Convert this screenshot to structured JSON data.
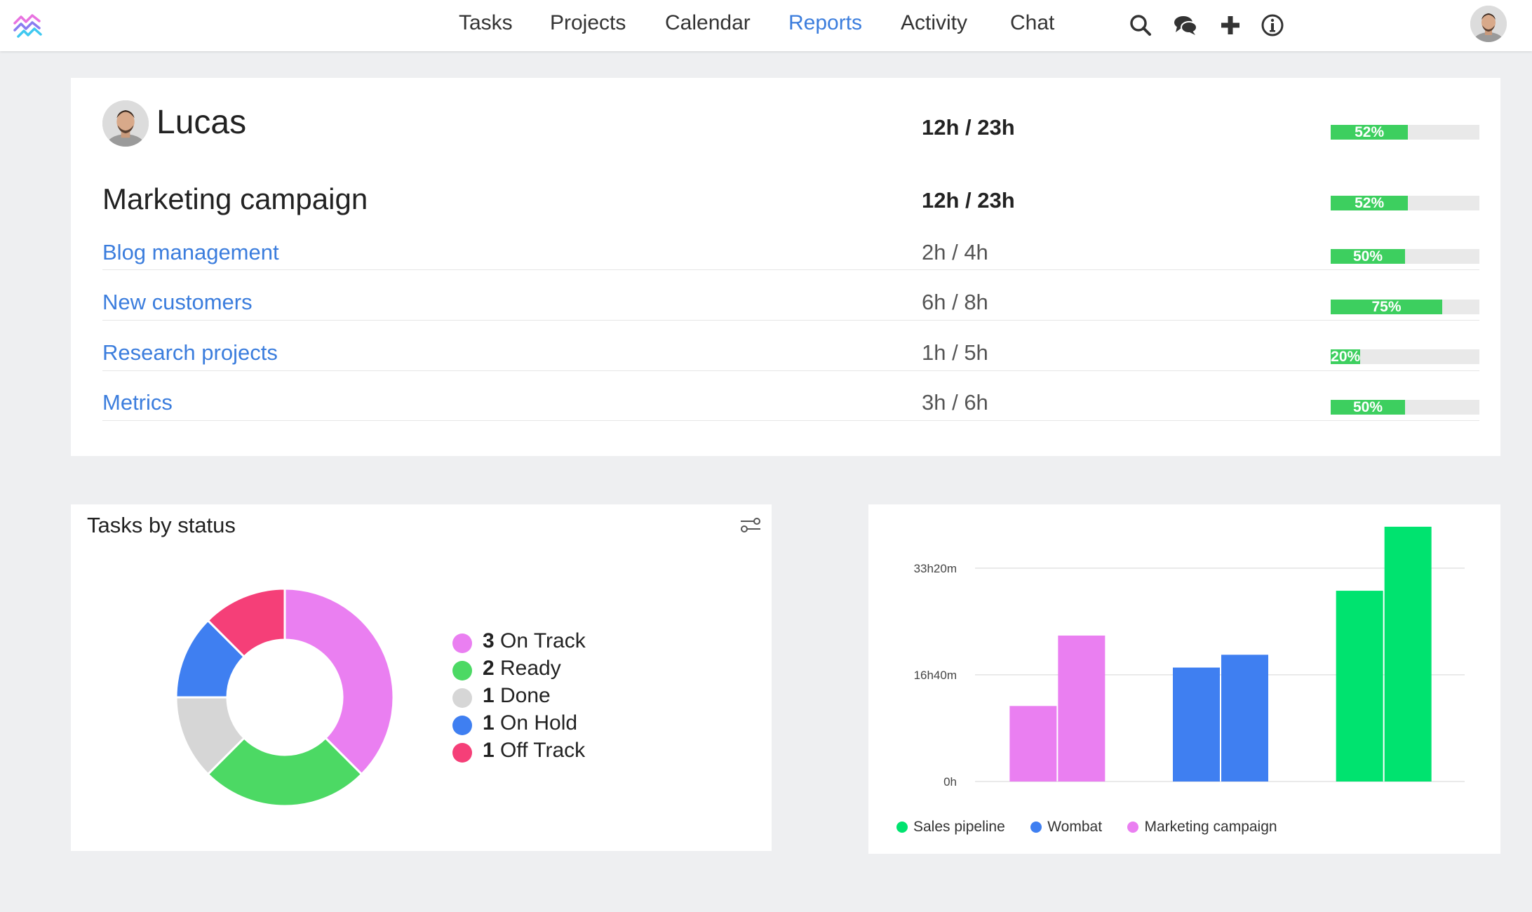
{
  "nav": {
    "items": [
      {
        "label": "Tasks",
        "active": false
      },
      {
        "label": "Projects",
        "active": false
      },
      {
        "label": "Calendar",
        "active": false
      },
      {
        "label": "Reports",
        "active": true
      },
      {
        "label": "Activity",
        "active": false
      },
      {
        "label": "Chat",
        "active": false
      }
    ],
    "icons": [
      "search-icon",
      "chat-bubbles-icon",
      "plus-icon",
      "info-icon"
    ],
    "active_color": "#3b7ddd"
  },
  "report": {
    "user": {
      "name": "Lucas",
      "hours": "12h / 23h",
      "percent": 52
    },
    "project": {
      "name": "Marketing campaign",
      "hours": "12h / 23h",
      "percent": 52
    },
    "rows": [
      {
        "label": "Blog management",
        "hours": "2h / 4h",
        "percent": 50
      },
      {
        "label": "New customers",
        "hours": "6h / 8h",
        "percent": 75
      },
      {
        "label": "Research projects",
        "hours": "1h / 5h",
        "percent": 20
      },
      {
        "label": "Metrics",
        "hours": "3h / 6h",
        "percent": 50
      }
    ],
    "bar_color": "#3dcf5f"
  },
  "status": {
    "title": "Tasks by status",
    "legend": [
      {
        "count": "3",
        "label": "On Track",
        "color": "#ea7ff1"
      },
      {
        "count": "2",
        "label": "Ready",
        "color": "#4cd964"
      },
      {
        "count": "1",
        "label": "Done",
        "color": "#d6d6d6"
      },
      {
        "count": "1",
        "label": "On Hold",
        "color": "#3f7ff1"
      },
      {
        "count": "1",
        "label": "Off Track",
        "color": "#f53f78"
      }
    ]
  },
  "chart_data": [
    {
      "type": "pie",
      "title": "Tasks by status",
      "categories": [
        "On Track",
        "Ready",
        "Done",
        "On Hold",
        "Off Track"
      ],
      "values": [
        3,
        2,
        1,
        1,
        1
      ],
      "colors": [
        "#ea7ff1",
        "#4cd964",
        "#d6d6d6",
        "#3f7ff1",
        "#f53f78"
      ],
      "donut": true,
      "legend": "right"
    },
    {
      "type": "bar",
      "title": "",
      "xlabel": "",
      "ylabel": "",
      "y_ticks": [
        "0h",
        "16h40m",
        "33h20m"
      ],
      "y_tick_values": [
        0,
        16.67,
        33.33
      ],
      "ylim": [
        0,
        40
      ],
      "grid": true,
      "legend": "bottom-left",
      "series": [
        {
          "name": "Marketing campaign",
          "color": "#ea7ff1",
          "values": [
            11.8,
            22.8
          ]
        },
        {
          "name": "Wombat",
          "color": "#3f7ff1",
          "values": [
            17.8,
            19.8
          ]
        },
        {
          "name": "Sales pipeline",
          "color": "#00e36f",
          "values": [
            29.8,
            39.8
          ]
        }
      ],
      "legend_entries": [
        {
          "name": "Sales pipeline",
          "color": "#00e36f"
        },
        {
          "name": "Wombat",
          "color": "#3f7ff1"
        },
        {
          "name": "Marketing campaign",
          "color": "#ea7ff1"
        }
      ]
    }
  ]
}
